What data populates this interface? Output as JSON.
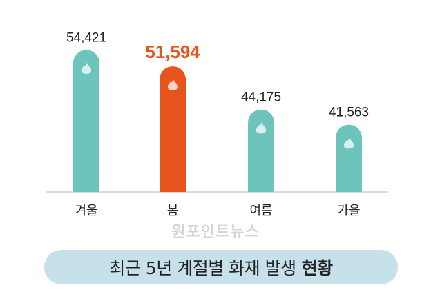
{
  "chart_data": {
    "type": "bar",
    "categories": [
      "겨울",
      "봄",
      "여름",
      "가을"
    ],
    "values": [
      54421,
      51594,
      44175,
      41563
    ],
    "value_labels": [
      "54,421",
      "51,594",
      "44,175",
      "41,563"
    ],
    "highlight_index": 1,
    "ylim": [
      30000,
      56000
    ],
    "grid": false,
    "colors": {
      "bar": "#6cc4bc",
      "highlight": "#e8541e",
      "label": "#222222"
    },
    "bar_icon": "fire-icon"
  },
  "title": {
    "text": "최근 5년 계절별 화재 발생",
    "bold": "현황"
  },
  "watermark": "원포인트뉴스"
}
